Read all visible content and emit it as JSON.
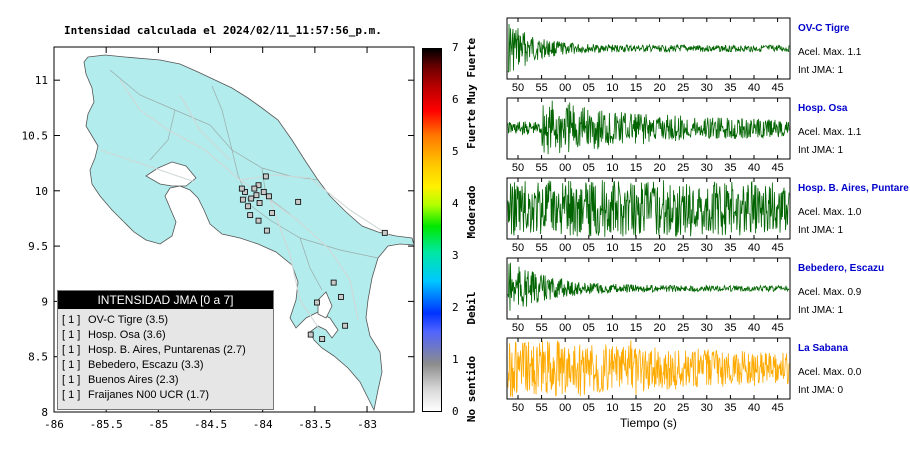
{
  "map": {
    "title": "Intensidad calculada el 2024/02/11_11:57:56_p.m.",
    "x_ticks": [
      "-86",
      "-85.5",
      "-85",
      "-84.5",
      "-84",
      "-83.5",
      "-83"
    ],
    "y_ticks": [
      "11",
      "10.5",
      "10",
      "9.5",
      "9",
      "8.5",
      "8"
    ],
    "xlim": [
      -86,
      -82.55
    ],
    "ylim": [
      8,
      11.3
    ],
    "land_color": "#b3ecec",
    "station_color": "#c9c9c9",
    "stations": [
      {
        "lon": -83.97,
        "lat": 10.13
      },
      {
        "lon": -84.04,
        "lat": 10.05
      },
      {
        "lon": -83.99,
        "lat": 9.99
      },
      {
        "lon": -84.06,
        "lat": 9.96
      },
      {
        "lon": -84.17,
        "lat": 9.99
      },
      {
        "lon": -84.11,
        "lat": 9.93
      },
      {
        "lon": -84.19,
        "lat": 9.92
      },
      {
        "lon": -84.14,
        "lat": 9.86
      },
      {
        "lon": -84.03,
        "lat": 9.89
      },
      {
        "lon": -83.94,
        "lat": 9.95
      },
      {
        "lon": -84.12,
        "lat": 9.78
      },
      {
        "lon": -84.04,
        "lat": 9.73
      },
      {
        "lon": -83.96,
        "lat": 9.64
      },
      {
        "lon": -83.91,
        "lat": 9.8
      },
      {
        "lon": -83.66,
        "lat": 9.9
      },
      {
        "lon": -83.32,
        "lat": 9.17
      },
      {
        "lon": -83.25,
        "lat": 9.04
      },
      {
        "lon": -83.48,
        "lat": 8.99
      },
      {
        "lon": -83.21,
        "lat": 8.78
      },
      {
        "lon": -83.43,
        "lat": 8.66
      },
      {
        "lon": -83.54,
        "lat": 8.7
      },
      {
        "lon": -82.83,
        "lat": 9.62
      },
      {
        "lon": -84.2,
        "lat": 10.02
      },
      {
        "lon": -84.08,
        "lat": 10.02
      }
    ]
  },
  "intensity_scale": {
    "ticks": [
      "0",
      "1",
      "2",
      "3",
      "4",
      "5",
      "6",
      "7"
    ],
    "labels": [
      "No sentido",
      "Debil",
      "Moderado",
      "Fuerte",
      "Muy Fuerte"
    ],
    "colors": [
      "#ffffff",
      "#8c8c8c",
      "#5064ff",
      "#00c8ff",
      "#00e800",
      "#fff000",
      "#ff7800",
      "#e60000",
      "#6b0000",
      "#000000"
    ]
  },
  "legend": {
    "title": "INTENSIDAD JMA [0 a 7]",
    "items": [
      {
        "level": "[ 1 ]",
        "name": "OV-C Tigre (3.5)"
      },
      {
        "level": "[ 1 ]",
        "name": "Hosp. Osa (3.6)"
      },
      {
        "level": "[ 1 ]",
        "name": "Hosp. B. Aires, Puntarenas (2.7)"
      },
      {
        "level": "[ 1 ]",
        "name": "Bebedero, Escazu (3.3)"
      },
      {
        "level": "[ 1 ]",
        "name": "Buenos Aires (2.3)"
      },
      {
        "level": "[ 1 ]",
        "name": "Fraijanes N00 UCR (1.7)"
      }
    ]
  },
  "traces": {
    "time_ticks": [
      "50",
      "55",
      "00",
      "05",
      "10",
      "15",
      "20",
      "25",
      "30",
      "35",
      "40",
      "45"
    ],
    "xlabel": "Tiempo (s)",
    "accel_prefix": "Acel. Max.",
    "int_prefix": "Int JMA:",
    "station_name_color": "#0000cc"
  },
  "chart_data": [
    {
      "type": "line",
      "name": "OV-C Tigre",
      "accel_max": "1.1",
      "int_jma": "1",
      "color": "#006400",
      "envelope": {
        "onset_s": 0,
        "peak": 0.95,
        "decay": 0.11,
        "noise": 0.12,
        "late_bursts": []
      }
    },
    {
      "type": "line",
      "name": "Hosp. Osa",
      "accel_max": "1.1",
      "int_jma": "1",
      "color": "#006400",
      "envelope": {
        "onset_s": 12,
        "peak": 0.9,
        "decay": 0.03,
        "noise": 0.25,
        "late_bursts": []
      }
    },
    {
      "type": "line",
      "name": "Hosp. B. Aires, Puntare",
      "accel_max": "1.0",
      "int_jma": "1",
      "color": "#006400",
      "envelope": {
        "onset_s": 0,
        "peak": 0.75,
        "decay": 0.005,
        "noise": 0.45,
        "late_bursts": []
      }
    },
    {
      "type": "line",
      "name": "Bebedero, Escazu",
      "accel_max": "0.9",
      "int_jma": "1",
      "color": "#006400",
      "envelope": {
        "onset_s": 0,
        "peak": 0.9,
        "decay": 0.07,
        "noise": 0.1,
        "late_bursts": []
      }
    },
    {
      "type": "line",
      "name": "La Sabana",
      "accel_max": "0.0",
      "int_jma": "0",
      "color": "#ffaa00",
      "envelope": {
        "onset_s": 0,
        "peak": 0.95,
        "decay": 0.015,
        "noise": 0.35,
        "late_bursts": [
          44,
          46
        ]
      }
    }
  ]
}
